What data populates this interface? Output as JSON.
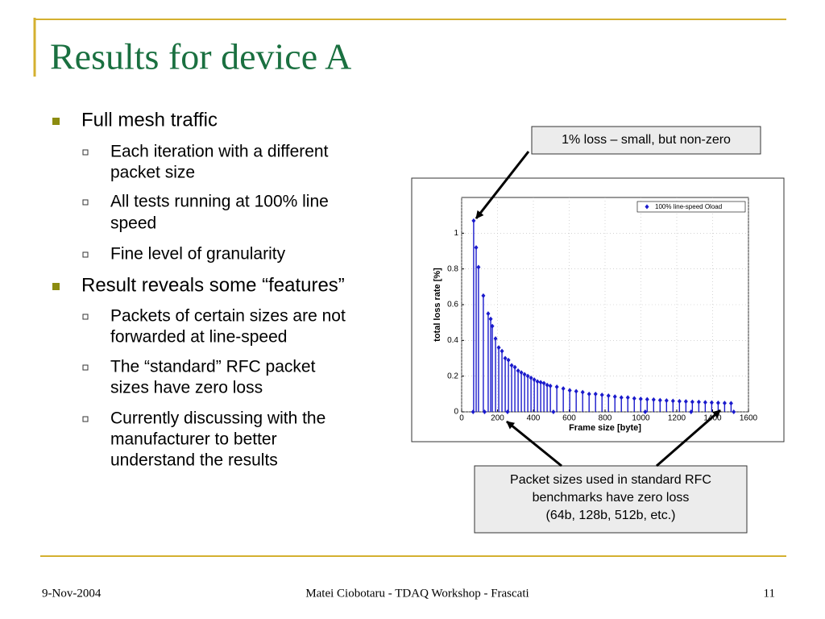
{
  "title": "Results for device A",
  "bullets": [
    {
      "level": 1,
      "lines": [
        "Full mesh traffic"
      ]
    },
    {
      "level": 2,
      "lines": [
        "Each iteration with a different",
        "packet size"
      ]
    },
    {
      "level": 2,
      "lines": [
        "All tests running at 100% line",
        "speed"
      ]
    },
    {
      "level": 2,
      "lines": [
        "Fine level of granularity"
      ]
    },
    {
      "level": 1,
      "lines": [
        "Result reveals some “features”"
      ]
    },
    {
      "level": 2,
      "lines": [
        "Packets of certain sizes are not",
        "forwarded at line-speed"
      ]
    },
    {
      "level": 2,
      "lines": [
        "The “standard” RFC packet",
        "sizes have zero loss"
      ]
    },
    {
      "level": 2,
      "lines": [
        "Currently discussing with the",
        "manufacturer to better",
        "understand the results"
      ]
    }
  ],
  "callouts": [
    {
      "lines": [
        "1% loss – small, but non-zero"
      ]
    },
    {
      "lines": [
        "Packet sizes used in standard RFC",
        "benchmarks have zero loss",
        "(64b, 128b, 512b, etc.)"
      ]
    }
  ],
  "chart_data": {
    "type": "stem",
    "xlabel": "Frame size [byte]",
    "ylabel": "total loss rate [%]",
    "x": [
      64,
      67,
      81,
      94,
      121,
      128,
      148,
      162,
      171,
      189,
      207,
      225,
      243,
      256,
      261,
      279,
      297,
      315,
      333,
      351,
      369,
      387,
      405,
      423,
      441,
      459,
      477,
      495,
      512,
      531,
      567,
      603,
      639,
      675,
      711,
      747,
      783,
      819,
      855,
      891,
      927,
      963,
      999,
      1024,
      1035,
      1071,
      1107,
      1143,
      1179,
      1215,
      1251,
      1280,
      1287,
      1323,
      1359,
      1395,
      1431,
      1467,
      1503,
      1518
    ],
    "series": [
      {
        "name": "100% line-speed Oload",
        "color": "#1a1acc",
        "values": [
          0,
          1.07,
          0.92,
          0.81,
          0.65,
          0,
          0.55,
          0.52,
          0.48,
          0.41,
          0.36,
          0.34,
          0.3,
          0,
          0.29,
          0.26,
          0.25,
          0.23,
          0.22,
          0.21,
          0.2,
          0.19,
          0.18,
          0.17,
          0.165,
          0.16,
          0.15,
          0.145,
          0,
          0.14,
          0.13,
          0.12,
          0.115,
          0.11,
          0.1,
          0.1,
          0.095,
          0.09,
          0.085,
          0.08,
          0.08,
          0.075,
          0.072,
          0,
          0.07,
          0.068,
          0.065,
          0.063,
          0.061,
          0.059,
          0.058,
          0,
          0.056,
          0.055,
          0.053,
          0.052,
          0.05,
          0.049,
          0.048,
          0
        ]
      }
    ],
    "xlim": [
      0,
      1600
    ],
    "xticks": [
      0,
      200,
      400,
      600,
      800,
      1000,
      1200,
      1400,
      1600
    ],
    "ylim": [
      0,
      1.2
    ],
    "yticks": [
      0,
      0.2,
      0.4,
      0.6,
      0.8,
      1
    ],
    "grid": true,
    "legend": "upper right"
  },
  "footer": {
    "date": "9-Nov-2004",
    "center": "Matei Ciobotaru - TDAQ Workshop - Frascati",
    "page": "11"
  }
}
